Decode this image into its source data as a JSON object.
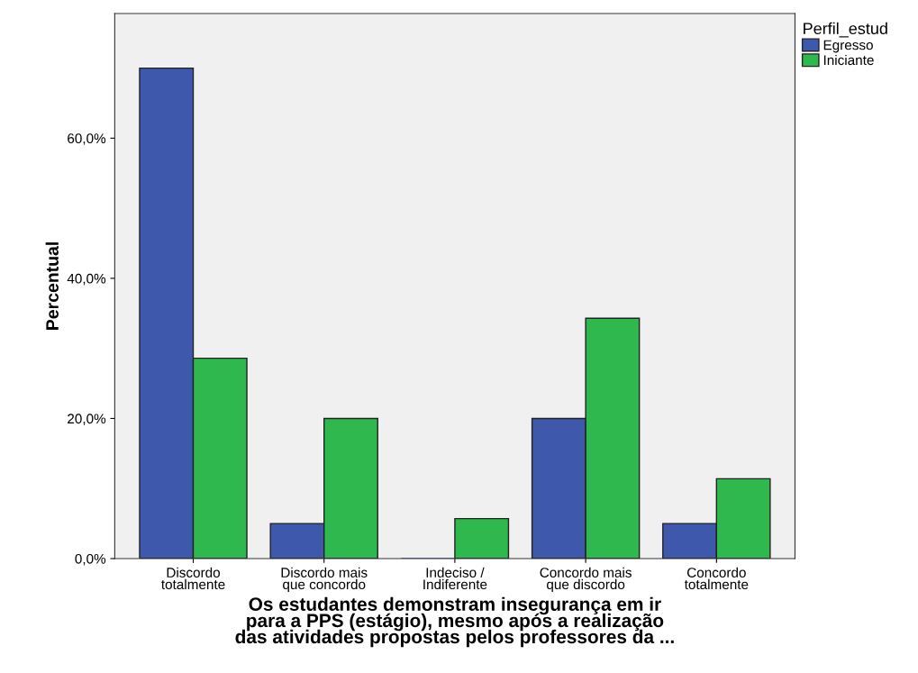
{
  "chart_data": {
    "type": "bar",
    "xlabel": "Os estudantes demonstram insegurança em ir\npara a PPS (estágio), mesmo após a realização\ndas atividades propostas pelos professores da ...",
    "ylabel": "Percentual",
    "legend_title": "Perfil_estud",
    "legend": "top right",
    "grid": false,
    "categories": [
      "Discordo\ntotalmente",
      "Discordo mais\nque concordo",
      "Indeciso /\nIndiferente",
      "Concordo mais\nque discordo",
      "Concordo\ntotalmente"
    ],
    "series": [
      {
        "name": "Egresso",
        "color": "#3e58ac",
        "values": [
          70.0,
          5.0,
          0.0,
          20.0,
          5.0
        ]
      },
      {
        "name": "Iniciante",
        "color": "#2eb84e",
        "values": [
          28.6,
          20.0,
          5.7,
          34.3,
          11.4
        ]
      }
    ],
    "ylim": [
      0,
      77.8
    ],
    "yticks": [
      {
        "value": 0,
        "label": "0,0%"
      },
      {
        "value": 20,
        "label": "20,0%"
      },
      {
        "value": 40,
        "label": "40,0%"
      },
      {
        "value": 60,
        "label": "60,0%"
      }
    ]
  }
}
